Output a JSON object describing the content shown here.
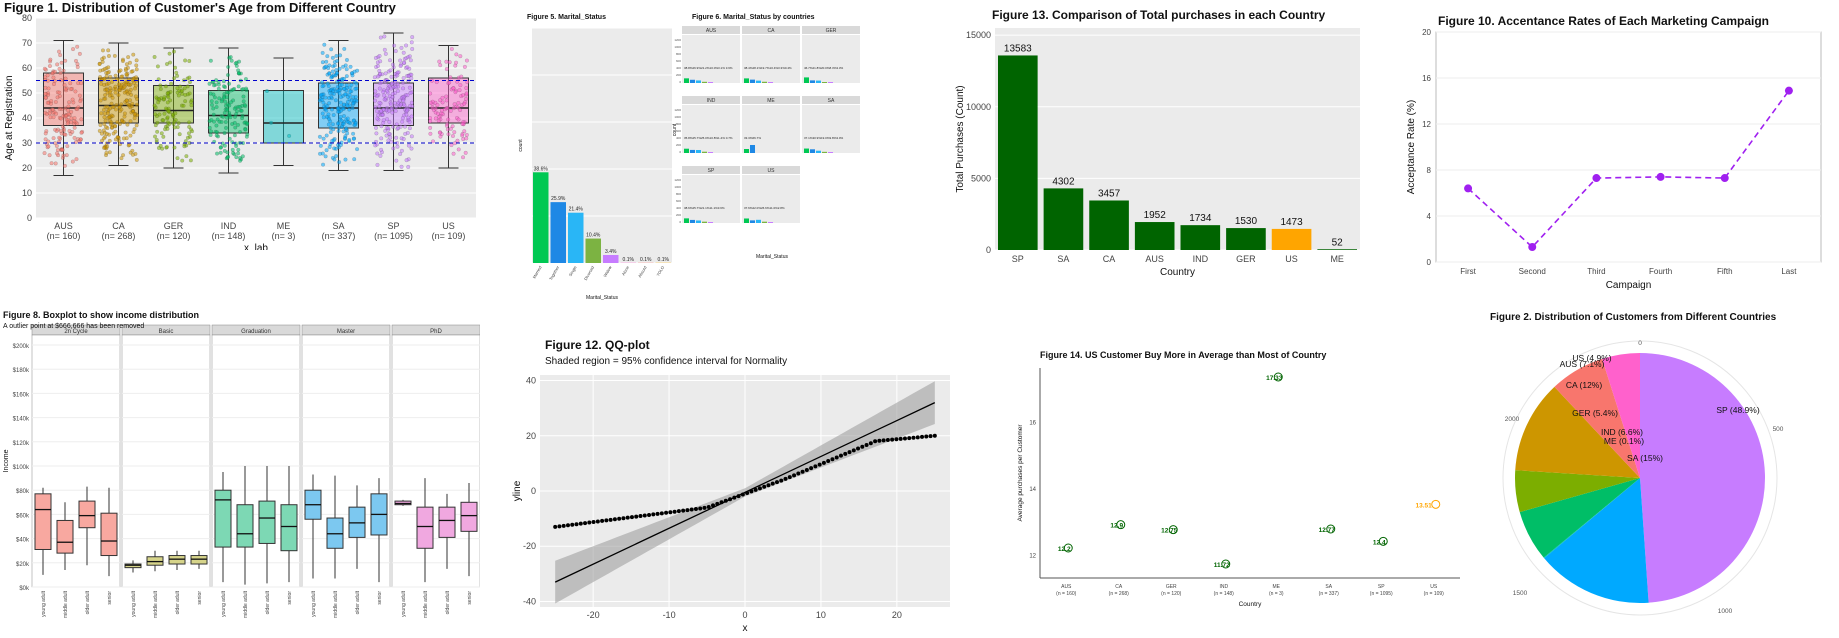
{
  "colors": {
    "panel_bg": "#ebebeb",
    "grid": "#ffffff",
    "dark_green": "#006400",
    "orange": "#ffa500",
    "purple": "#a020f0",
    "blue_dash": "#0000cc"
  },
  "chart_data": [
    {
      "id": "fig1",
      "type": "boxplot",
      "title": "Figure 1. Distribution of Customer's Age from Different Country",
      "xlabel": "x_lab",
      "ylabel": "Age at Registration",
      "ylim": [
        0,
        80
      ],
      "yticks": [
        0,
        10,
        20,
        30,
        40,
        50,
        60,
        70,
        80
      ],
      "hlines": [
        30,
        55
      ],
      "grid": true,
      "categories": [
        "AUS",
        "CA",
        "GER",
        "IND",
        "ME",
        "SA",
        "SP",
        "US"
      ],
      "category_counts": [
        "(n= 160)",
        "(n= 268)",
        "(n= 120)",
        "(n= 148)",
        "(n= 3)",
        "(n= 337)",
        "(n= 1095)",
        "(n= 109)"
      ],
      "colors": [
        "#f8766d",
        "#cd9600",
        "#7cae00",
        "#00be67",
        "#00bfc4",
        "#00a9ff",
        "#c77cff",
        "#ff61cc"
      ],
      "boxes": [
        {
          "min": 17,
          "q1": 37,
          "median": 44,
          "q3": 58,
          "max": 71
        },
        {
          "min": 21,
          "q1": 38,
          "median": 45,
          "q3": 56,
          "max": 70
        },
        {
          "min": 20,
          "q1": 38,
          "median": 43,
          "q3": 53,
          "max": 68
        },
        {
          "min": 18,
          "q1": 34,
          "median": 41,
          "q3": 51,
          "max": 68
        },
        {
          "min": 21,
          "q1": 30,
          "median": 38,
          "q3": 51,
          "max": 64
        },
        {
          "min": 19,
          "q1": 36,
          "median": 44,
          "q3": 54,
          "max": 71
        },
        {
          "min": 19,
          "q1": 37,
          "median": 44,
          "q3": 54,
          "max": 74
        },
        {
          "min": 20,
          "q1": 38,
          "median": 44,
          "q3": 56,
          "max": 69
        }
      ]
    },
    {
      "id": "fig5",
      "type": "bar",
      "title": "Figure 5. Marital_Status",
      "xlabel": "Marital_Status",
      "ylabel": "count",
      "categories": [
        "Married",
        "Together",
        "Single",
        "Divorced",
        "Widow",
        "Alone",
        "Absurd",
        "YOLO"
      ],
      "values": [
        38.6,
        25.9,
        21.4,
        10.4,
        3.4,
        0.1,
        0.1,
        0.1
      ],
      "labels": [
        "38.6%",
        "25.9%",
        "21.4%",
        "10.4%",
        "3.4%",
        "0.1%",
        "0.1%",
        "0.1%"
      ],
      "colors": [
        "#00c853",
        "#1e88e5",
        "#29b6f6",
        "#7cb342",
        "#c77cff",
        "#ff61cc",
        "#f8766d",
        "#ffb300"
      ],
      "ylim": [
        0,
        100
      ]
    },
    {
      "id": "fig6",
      "type": "bar",
      "title": "Figure 6. Marital_Status by countries",
      "xlabel": "Marital_Status",
      "ylabel": "count",
      "yticks": [
        "0",
        "100",
        "200",
        "300",
        "400",
        "500",
        "600",
        "700",
        "800",
        "900",
        "1000",
        "1100",
        "1200"
      ],
      "facets": [
        {
          "name": "AUS",
          "values": [
            38.8,
            26.9,
            21.2,
            10.0,
            3.1
          ],
          "labels": "38.8%26.9%21.2%10.0%3.1%      3.6%"
        },
        {
          "name": "CA",
          "values": [
            38.4,
            28.1,
            19.7,
            10.4,
            3.3
          ],
          "labels": "38.4%28.1%19.7%10.4%3.3%0.4%"
        },
        {
          "name": "GER",
          "values": [
            46.7,
            21.8,
            20.0,
            8.3,
            3.3
          ],
          "labels": "46.7%21.8%20.0%8.3%3.3%"
        },
        {
          "name": "IND",
          "values": [
            35.8,
            25.7,
            25.0,
            10.8,
            1.4
          ],
          "labels": "35.8%25.7%25.0%10.8%1.4%            0.7%"
        },
        {
          "name": "ME",
          "values": [
            33.3,
            66.7
          ],
          "labels": "33.3%66.7%"
        },
        {
          "name": "SA",
          "values": [
            37.1,
            30.9,
            19.0,
            9.8,
            3.0
          ],
          "labels": "37.1%30.9%19.0%9.8%3.0%"
        },
        {
          "name": "SP",
          "values": [
            38.6,
            25.7,
            21.1,
            11.1,
            3.6
          ],
          "labels": "38.6%25.7%21.1%11.1%3.6%"
        },
        {
          "name": "US",
          "values": [
            37.6,
            22.0,
            26.6,
            11.0,
            2.8
          ],
          "labels": "37.6%22.0%26.6%11.0%2.8%"
        }
      ]
    },
    {
      "id": "fig13",
      "type": "bar",
      "title": "Figure 13. Comparison of Total purchases in each Country",
      "xlabel": "Country",
      "ylabel": "Total Purchases (Count)",
      "categories": [
        "SP",
        "SA",
        "CA",
        "AUS",
        "IND",
        "GER",
        "US",
        "ME"
      ],
      "values": [
        13583,
        4302,
        3457,
        1952,
        1734,
        1530,
        1473,
        52
      ],
      "highlight": "US",
      "ylim": [
        0,
        15500
      ],
      "yticks": [
        0,
        5000,
        10000,
        15000
      ]
    },
    {
      "id": "fig10",
      "type": "line",
      "title": "Figure 10. Accentance Rates of Each Marketing Campaign",
      "xlabel": "Campaign",
      "ylabel": "Acceptance Rate (%)",
      "categories": [
        "First",
        "Second",
        "Third",
        "Fourth",
        "Fifth",
        "Last"
      ],
      "values": [
        6.4,
        1.3,
        7.3,
        7.4,
        7.3,
        14.9
      ],
      "ylim": [
        0,
        20
      ],
      "yticks": [
        0,
        4,
        8,
        12,
        16,
        20
      ]
    },
    {
      "id": "fig8",
      "type": "boxplot",
      "title": "Figure 8. Boxplot to show income distribution",
      "subtitle": "A outlier point at $666,666 has been removed",
      "ylabel": "Income",
      "ylim": [
        0,
        200000
      ],
      "yticks": [
        "$0k",
        "$20k",
        "$40k",
        "$60k",
        "$80k",
        "$100k",
        "$120k",
        "$140k",
        "$160k",
        "$180k",
        "$200k"
      ],
      "groups": [
        "young adult",
        "middle adult",
        "older adult",
        "senior"
      ],
      "facets": [
        {
          "name": "2n Cycle",
          "color": "#f8a8a0",
          "boxes": [
            {
              "min": 10,
              "q1": 31,
              "median": 64,
              "q3": 77,
              "max": 82
            },
            {
              "min": 14,
              "q1": 28,
              "median": 37,
              "q3": 55,
              "max": 70
            },
            {
              "min": 18,
              "q1": 49,
              "median": 59,
              "q3": 71,
              "max": 83
            },
            {
              "min": 9,
              "q1": 26,
              "median": 38,
              "q3": 61,
              "max": 82
            }
          ]
        },
        {
          "name": "Basic",
          "color": "#d6d48a",
          "boxes": [
            {
              "min": 12,
              "q1": 16,
              "median": 18,
              "q3": 19,
              "max": 22
            },
            {
              "min": 13,
              "q1": 18,
              "median": 21,
              "q3": 25,
              "max": 30
            },
            {
              "min": 14,
              "q1": 19,
              "median": 23,
              "q3": 26,
              "max": 30
            },
            {
              "min": 15,
              "q1": 19,
              "median": 23,
              "q3": 26,
              "max": 30
            }
          ]
        },
        {
          "name": "Graduation",
          "color": "#7dd8b4",
          "boxes": [
            {
              "min": 4,
              "q1": 33,
              "median": 72,
              "q3": 80,
              "max": 95
            },
            {
              "min": 2,
              "q1": 33,
              "median": 44,
              "q3": 68,
              "max": 100
            },
            {
              "min": 3,
              "q1": 36,
              "median": 57,
              "q3": 71,
              "max": 100
            },
            {
              "min": 4,
              "q1": 30,
              "median": 50,
              "q3": 68,
              "max": 100
            }
          ]
        },
        {
          "name": "Master",
          "color": "#7cc8f0",
          "boxes": [
            {
              "min": 7,
              "q1": 56,
              "median": 68,
              "q3": 80,
              "max": 93
            },
            {
              "min": 7,
              "q1": 32,
              "median": 44,
              "q3": 57,
              "max": 92
            },
            {
              "min": 15,
              "q1": 41,
              "median": 53,
              "q3": 66,
              "max": 84
            },
            {
              "min": 4,
              "q1": 43,
              "median": 60,
              "q3": 77,
              "max": 90
            }
          ]
        },
        {
          "name": "PhD",
          "color": "#f0a8e0",
          "boxes": [
            {
              "min": 67,
              "q1": 68,
              "median": 69,
              "q3": 71,
              "max": 72
            },
            {
              "min": 4,
              "q1": 32,
              "median": 50,
              "q3": 66,
              "max": 90
            },
            {
              "min": 15,
              "q1": 41,
              "median": 55,
              "q3": 66,
              "max": 77
            },
            {
              "min": 9,
              "q1": 46,
              "median": 59,
              "q3": 70,
              "max": 86
            }
          ]
        }
      ]
    },
    {
      "id": "fig12",
      "type": "scatter",
      "title": "Figure 12. QQ-plot",
      "subtitle": "Shaded region = 95% confidence interval for Normality",
      "xlabel": "x",
      "ylabel": "yline",
      "xlim": [
        -27,
        27
      ],
      "ylim": [
        -42,
        42
      ],
      "xticks": [
        -20,
        -10,
        0,
        10,
        20
      ],
      "yticks": [
        -40,
        -20,
        0,
        20,
        40
      ],
      "line": {
        "x": [
          -25,
          25
        ],
        "y": [
          -33,
          32
        ]
      }
    },
    {
      "id": "fig14",
      "type": "scatter",
      "title": "Figure 14. US Customer Buy More in Average than Most of Country",
      "xlabel": "Country",
      "ylabel": "Average purchases per Customer",
      "categories": [
        "AUS",
        "CA",
        "GER",
        "IND",
        "ME",
        "SA",
        "SP",
        "US"
      ],
      "category_counts": [
        "(n = 160)",
        "(n = 268)",
        "(n = 120)",
        "(n = 148)",
        "(n = 3)",
        "(n = 337)",
        "(n = 1095)",
        "(n = 109)"
      ],
      "values": [
        12.2,
        12.9,
        12.75,
        11.72,
        17.33,
        12.77,
        12.4,
        13.51
      ],
      "labels": [
        "12.2",
        "12.9",
        "12.75",
        "11.72",
        "17.33",
        "12.77",
        "12.4",
        "13.51"
      ],
      "highlight": "US",
      "ylim": [
        11.3,
        17.6
      ],
      "yticks": [
        12,
        14,
        16
      ]
    },
    {
      "id": "fig2",
      "type": "pie",
      "title": "Figure 2. Distribution of Customers from Different Countries",
      "slices": [
        {
          "label": "SP (48.9%)",
          "value": 48.9,
          "color": "#c77cff"
        },
        {
          "label": "SA (15%)",
          "value": 15.0,
          "color": "#00a9ff"
        },
        {
          "label": "ME (0.1%)",
          "value": 0.1,
          "color": "#00bfc4"
        },
        {
          "label": "IND (6.6%)",
          "value": 6.6,
          "color": "#00be67"
        },
        {
          "label": "GER (5.4%)",
          "value": 5.4,
          "color": "#7cae00"
        },
        {
          "label": "CA (12%)",
          "value": 12.0,
          "color": "#cd9600"
        },
        {
          "label": "AUS (7.1%)",
          "value": 7.1,
          "color": "#f8766d"
        },
        {
          "label": "US (4.9%)",
          "value": 4.9,
          "color": "#ff61cc"
        }
      ],
      "ring_ticks": [
        "0",
        "500",
        "1000",
        "1500",
        "2000"
      ]
    }
  ]
}
